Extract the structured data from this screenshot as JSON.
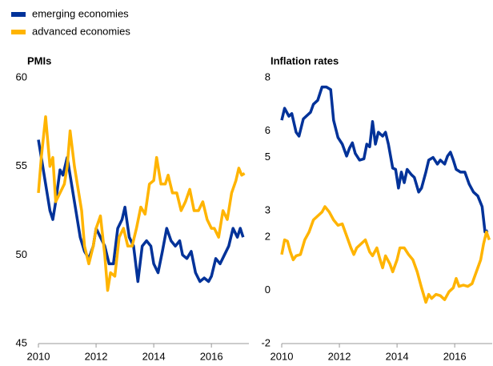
{
  "chart_data": [
    {
      "type": "line",
      "title": "PMIs",
      "xlim": [
        2010,
        2017.3
      ],
      "xticks": [
        2010,
        2012,
        2014,
        2016
      ],
      "ylim": [
        45,
        60
      ],
      "yticks": [
        45,
        50,
        55,
        60
      ],
      "series": [
        {
          "name": "emerging economies",
          "color": "#003299",
          "x": [
            2010.0,
            2010.1,
            2010.25,
            2010.4,
            2010.5,
            2010.6,
            2010.75,
            2010.85,
            2011.0,
            2011.15,
            2011.3,
            2011.45,
            2011.6,
            2011.75,
            2011.9,
            2012.0,
            2012.15,
            2012.3,
            2012.45,
            2012.6,
            2012.75,
            2012.9,
            2013.0,
            2013.15,
            2013.3,
            2013.45,
            2013.6,
            2013.75,
            2013.9,
            2014.0,
            2014.15,
            2014.3,
            2014.45,
            2014.6,
            2014.75,
            2014.9,
            2015.0,
            2015.15,
            2015.3,
            2015.45,
            2015.6,
            2015.75,
            2015.9,
            2016.0,
            2016.15,
            2016.3,
            2016.45,
            2016.6,
            2016.75,
            2016.9,
            2017.0,
            2017.1
          ],
          "values": [
            56.5,
            55.5,
            54,
            52.5,
            52,
            53,
            54.8,
            54.5,
            55.5,
            54,
            52.5,
            51,
            50.2,
            49.8,
            50.5,
            51.5,
            51,
            50.5,
            49.5,
            49.5,
            51.5,
            52,
            52.7,
            51,
            50.5,
            48.5,
            50.5,
            50.8,
            50.5,
            49.5,
            49,
            50.2,
            51.5,
            50.8,
            50.5,
            50.8,
            50,
            49.8,
            50.2,
            49,
            48.5,
            48.7,
            48.5,
            48.8,
            49.8,
            49.5,
            50,
            50.5,
            51.5,
            51,
            51.5,
            51
          ]
        },
        {
          "name": "advanced economies",
          "color": "#ffb400",
          "x": [
            2010.0,
            2010.1,
            2010.25,
            2010.4,
            2010.5,
            2010.6,
            2010.75,
            2010.9,
            2011.0,
            2011.1,
            2011.25,
            2011.4,
            2011.5,
            2011.6,
            2011.75,
            2011.9,
            2012.0,
            2012.15,
            2012.3,
            2012.4,
            2012.5,
            2012.65,
            2012.8,
            2012.95,
            2013.1,
            2013.25,
            2013.4,
            2013.55,
            2013.7,
            2013.85,
            2014.0,
            2014.1,
            2014.25,
            2014.4,
            2014.5,
            2014.65,
            2014.8,
            2014.95,
            2015.1,
            2015.25,
            2015.4,
            2015.55,
            2015.7,
            2015.85,
            2016.0,
            2016.1,
            2016.25,
            2016.4,
            2016.55,
            2016.7,
            2016.85,
            2016.95,
            2017.05,
            2017.15
          ],
          "values": [
            53.5,
            55.5,
            57.8,
            55,
            55.5,
            53,
            53.5,
            54,
            55,
            57,
            55,
            53.5,
            52.5,
            50.5,
            49.5,
            50.5,
            51.5,
            52.2,
            50,
            48,
            49,
            48.8,
            51,
            51.5,
            50.5,
            50.5,
            51.5,
            52.7,
            52.3,
            54,
            54.2,
            55.5,
            54,
            54,
            54.5,
            53.5,
            53.5,
            52.5,
            53,
            53.7,
            52.5,
            52.5,
            53,
            52,
            51.5,
            51.5,
            51,
            52.5,
            52,
            53.5,
            54.2,
            54.9,
            54.5,
            54.6
          ]
        }
      ]
    },
    {
      "type": "line",
      "title": "Inflation rates",
      "xlim": [
        2010,
        2017.3
      ],
      "xticks": [
        2010,
        2012,
        2014,
        2016
      ],
      "ylim": [
        -2,
        8
      ],
      "yticks": [
        -2,
        0,
        2,
        3,
        5,
        6,
        8
      ],
      "series": [
        {
          "color": "#003299",
          "x": [
            2010.0,
            2010.1,
            2010.25,
            2010.35,
            2010.5,
            2010.6,
            2010.75,
            2010.9,
            2011.0,
            2011.1,
            2011.25,
            2011.4,
            2011.55,
            2011.7,
            2011.8,
            2011.95,
            2012.1,
            2012.25,
            2012.35,
            2012.45,
            2012.55,
            2012.7,
            2012.85,
            2012.95,
            2013.05,
            2013.15,
            2013.25,
            2013.35,
            2013.5,
            2013.6,
            2013.7,
            2013.85,
            2013.95,
            2014.05,
            2014.15,
            2014.25,
            2014.35,
            2014.5,
            2014.6,
            2014.75,
            2014.85,
            2015.0,
            2015.1,
            2015.25,
            2015.4,
            2015.5,
            2015.65,
            2015.75,
            2015.85,
            2015.95,
            2016.05,
            2016.2,
            2016.35,
            2016.5,
            2016.65,
            2016.8,
            2016.95,
            2017.05,
            2017.15
          ],
          "values": [
            6.4,
            6.85,
            6.55,
            6.65,
            5.95,
            5.8,
            6.45,
            6.6,
            6.7,
            7.0,
            7.15,
            7.65,
            7.65,
            7.55,
            6.4,
            5.75,
            5.5,
            5.05,
            5.35,
            5.55,
            5.15,
            4.9,
            4.95,
            5.5,
            5.4,
            6.35,
            5.5,
            5.95,
            5.8,
            5.95,
            5.5,
            4.6,
            4.55,
            3.85,
            4.45,
            4.05,
            4.55,
            4.35,
            4.25,
            3.7,
            3.85,
            4.45,
            4.9,
            5.0,
            4.75,
            4.9,
            4.75,
            5.05,
            5.2,
            4.9,
            4.55,
            4.45,
            4.45,
            4.0,
            3.7,
            3.55,
            3.15,
            2.2,
            2.25
          ]
        },
        {
          "color": "#ffb400",
          "x": [
            2010.0,
            2010.1,
            2010.2,
            2010.3,
            2010.4,
            2010.5,
            2010.65,
            2010.8,
            2010.95,
            2011.1,
            2011.25,
            2011.4,
            2011.5,
            2011.65,
            2011.8,
            2011.95,
            2012.1,
            2012.25,
            2012.4,
            2012.5,
            2012.6,
            2012.75,
            2012.9,
            2013.05,
            2013.15,
            2013.3,
            2013.4,
            2013.5,
            2013.6,
            2013.75,
            2013.85,
            2014.0,
            2014.1,
            2014.25,
            2014.4,
            2014.55,
            2014.7,
            2014.85,
            2015.0,
            2015.1,
            2015.2,
            2015.35,
            2015.5,
            2015.65,
            2015.8,
            2015.95,
            2016.05,
            2016.15,
            2016.3,
            2016.45,
            2016.6,
            2016.75,
            2016.9,
            2017.0,
            2017.1,
            2017.2
          ],
          "values": [
            1.35,
            1.9,
            1.85,
            1.45,
            1.15,
            1.3,
            1.35,
            1.9,
            2.2,
            2.65,
            2.8,
            2.95,
            3.15,
            2.95,
            2.65,
            2.45,
            2.5,
            2.05,
            1.6,
            1.35,
            1.6,
            1.75,
            1.9,
            1.45,
            1.3,
            1.6,
            1.2,
            0.85,
            1.3,
            1.0,
            0.7,
            1.15,
            1.6,
            1.6,
            1.35,
            1.15,
            0.7,
            0.1,
            -0.45,
            -0.15,
            -0.3,
            -0.15,
            -0.2,
            -0.35,
            -0.05,
            0.1,
            0.45,
            0.15,
            0.2,
            0.15,
            0.25,
            0.7,
            1.15,
            1.75,
            2.2,
            1.9
          ]
        }
      ]
    }
  ]
}
